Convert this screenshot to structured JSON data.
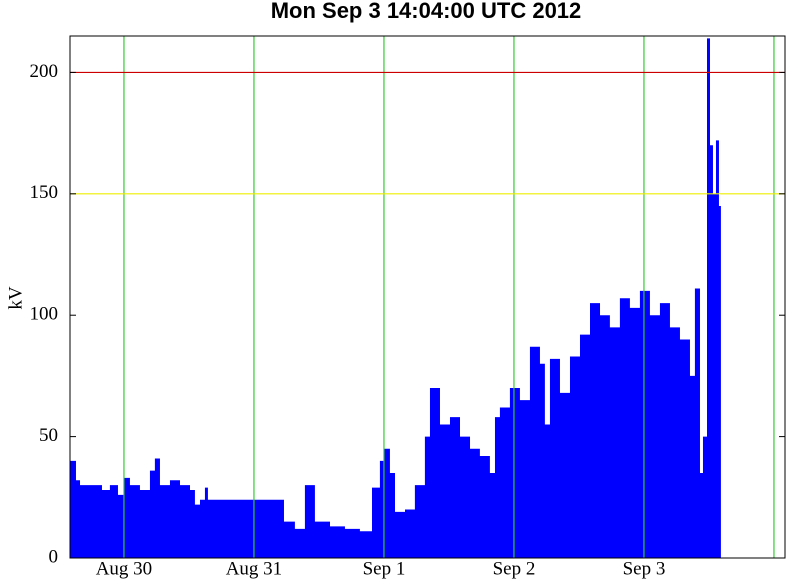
{
  "chart_data": {
    "type": "area",
    "title": "Mon Sep  3 14:04:00 UTC 2012",
    "ylabel": "kV",
    "color": "#0000ff",
    "grid_color": "#33cc33",
    "xlim": [
      -0.415,
      5.085
    ],
    "xticks": [
      {
        "value": 0,
        "label": "Aug 30"
      },
      {
        "value": 1,
        "label": "Aug 31"
      },
      {
        "value": 2,
        "label": "Sep 1"
      },
      {
        "value": 3,
        "label": "Sep 2"
      },
      {
        "value": 4,
        "label": "Sep 3"
      },
      {
        "value": 5,
        "label": null
      }
    ],
    "ylim": [
      0,
      215
    ],
    "yticks": [
      0,
      50,
      100,
      150,
      200
    ],
    "hlines": [
      {
        "value": 200,
        "color": "#cc0000"
      },
      {
        "value": 150,
        "color": "#eeee00"
      }
    ],
    "x": [
      -0.415,
      -0.369,
      -0.338,
      -0.169,
      -0.108,
      -0.046,
      0,
      0.046,
      0.123,
      0.2,
      0.238,
      0.277,
      0.354,
      0.431,
      0.508,
      0.546,
      0.585,
      0.623,
      0.646,
      1.231,
      1.315,
      1.392,
      1.469,
      1.585,
      1.7,
      1.815,
      1.908,
      1.969,
      2,
      2.046,
      2.085,
      2.162,
      2.238,
      2.315,
      2.354,
      2.431,
      2.508,
      2.585,
      2.662,
      2.738,
      2.815,
      2.854,
      2.892,
      2.969,
      3.046,
      3.123,
      3.2,
      3.238,
      3.277,
      3.354,
      3.431,
      3.508,
      3.585,
      3.662,
      3.738,
      3.815,
      3.892,
      3.969,
      4.046,
      4.123,
      4.2,
      4.277,
      4.354,
      4.392,
      4.431,
      4.454,
      4.485,
      4.508,
      4.531,
      4.554,
      4.577,
      4.592
    ],
    "values": [
      40,
      32,
      30,
      28,
      30,
      26,
      33,
      30,
      28,
      36,
      41,
      30,
      32,
      30,
      28,
      22,
      24,
      29,
      24,
      15,
      12,
      30,
      15,
      13,
      12,
      11,
      29,
      40,
      45,
      35,
      19,
      20,
      30,
      50,
      70,
      55,
      58,
      50,
      45,
      42,
      35,
      58,
      62,
      70,
      65,
      87,
      80,
      55,
      82,
      68,
      83,
      92,
      105,
      100,
      95,
      107,
      103,
      110,
      100,
      105,
      95,
      90,
      75,
      111,
      35,
      50,
      214,
      170,
      150,
      172,
      145,
      145
    ]
  }
}
